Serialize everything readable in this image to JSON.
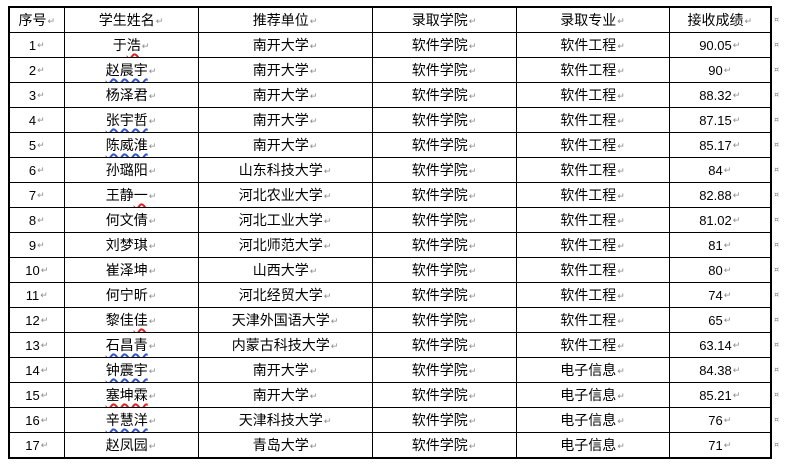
{
  "table": {
    "headers": [
      "序号",
      "学生姓名",
      "推荐单位",
      "录取学院",
      "录取专业",
      "接收成绩"
    ],
    "rows": [
      {
        "no": "1",
        "name_parts": [
          {
            "text": "于",
            "mark": "none"
          },
          {
            "text": "浩",
            "mark": "red"
          }
        ],
        "unit": "南开大学",
        "college": "软件学院",
        "major": "软件工程",
        "score": "90.05"
      },
      {
        "no": "2",
        "name_parts": [
          {
            "text": "赵晨宇",
            "mark": "blue"
          }
        ],
        "unit": "南开大学",
        "college": "软件学院",
        "major": "软件工程",
        "score": "90"
      },
      {
        "no": "3",
        "name_parts": [
          {
            "text": "杨泽君",
            "mark": "none"
          }
        ],
        "unit": "南开大学",
        "college": "软件学院",
        "major": "软件工程",
        "score": "88.32"
      },
      {
        "no": "4",
        "name_parts": [
          {
            "text": "张宇哲",
            "mark": "blue"
          }
        ],
        "unit": "南开大学",
        "college": "软件学院",
        "major": "软件工程",
        "score": "87.15"
      },
      {
        "no": "5",
        "name_parts": [
          {
            "text": "陈威淮",
            "mark": "blue"
          }
        ],
        "unit": "南开大学",
        "college": "软件学院",
        "major": "软件工程",
        "score": "85.17"
      },
      {
        "no": "6",
        "name_parts": [
          {
            "text": "孙璐阳",
            "mark": "none"
          }
        ],
        "unit": "山东科技大学",
        "college": "软件学院",
        "major": "软件工程",
        "score": "84"
      },
      {
        "no": "7",
        "name_parts": [
          {
            "text": "王静",
            "mark": "none"
          },
          {
            "text": "一",
            "mark": "red"
          }
        ],
        "unit": "河北农业大学",
        "college": "软件学院",
        "major": "软件工程",
        "score": "82.88"
      },
      {
        "no": "8",
        "name_parts": [
          {
            "text": "何文倩",
            "mark": "none"
          }
        ],
        "unit": "河北工业大学",
        "college": "软件学院",
        "major": "软件工程",
        "score": "81.02"
      },
      {
        "no": "9",
        "name_parts": [
          {
            "text": "刘梦琪",
            "mark": "none"
          }
        ],
        "unit": "河北师范大学",
        "college": "软件学院",
        "major": "软件工程",
        "score": "81"
      },
      {
        "no": "10",
        "name_parts": [
          {
            "text": "崔泽坤",
            "mark": "none"
          }
        ],
        "unit": "山西大学",
        "college": "软件学院",
        "major": "软件工程",
        "score": "80"
      },
      {
        "no": "11",
        "name_parts": [
          {
            "text": "何宁昕",
            "mark": "none"
          }
        ],
        "unit": "河北经贸大学",
        "college": "软件学院",
        "major": "软件工程",
        "score": "74"
      },
      {
        "no": "12",
        "name_parts": [
          {
            "text": "黎佳",
            "mark": "none"
          },
          {
            "text": "佳",
            "mark": "red"
          }
        ],
        "unit": "天津外国语大学",
        "college": "软件学院",
        "major": "软件工程",
        "score": "65"
      },
      {
        "no": "13",
        "name_parts": [
          {
            "text": "石昌青",
            "mark": "blue"
          }
        ],
        "unit": "内蒙古科技大学",
        "college": "软件学院",
        "major": "软件工程",
        "score": "63.14"
      },
      {
        "no": "14",
        "name_parts": [
          {
            "text": "钟震宇",
            "mark": "blue"
          }
        ],
        "unit": "南开大学",
        "college": "软件学院",
        "major": "电子信息",
        "score": "84.38"
      },
      {
        "no": "15",
        "name_parts": [
          {
            "text": "塞坤霖",
            "mark": "red"
          }
        ],
        "unit": "南开大学",
        "college": "软件学院",
        "major": "电子信息",
        "score": "85.21"
      },
      {
        "no": "16",
        "name_parts": [
          {
            "text": "辛慧洋",
            "mark": "blue"
          }
        ],
        "unit": "天津科技大学",
        "college": "软件学院",
        "major": "电子信息",
        "score": "76"
      },
      {
        "no": "17",
        "name_parts": [
          {
            "text": "赵凤园",
            "mark": "none"
          }
        ],
        "unit": "青岛大学",
        "college": "软件学院",
        "major": "电子信息",
        "score": "71"
      }
    ],
    "marks": {
      "cell_end": "↵",
      "row_end": "¤"
    },
    "colors": {
      "spell_red": "#dd2222",
      "spell_blue": "#3355cc",
      "border": "#000000",
      "mark_gray": "#8a8a8a"
    }
  }
}
